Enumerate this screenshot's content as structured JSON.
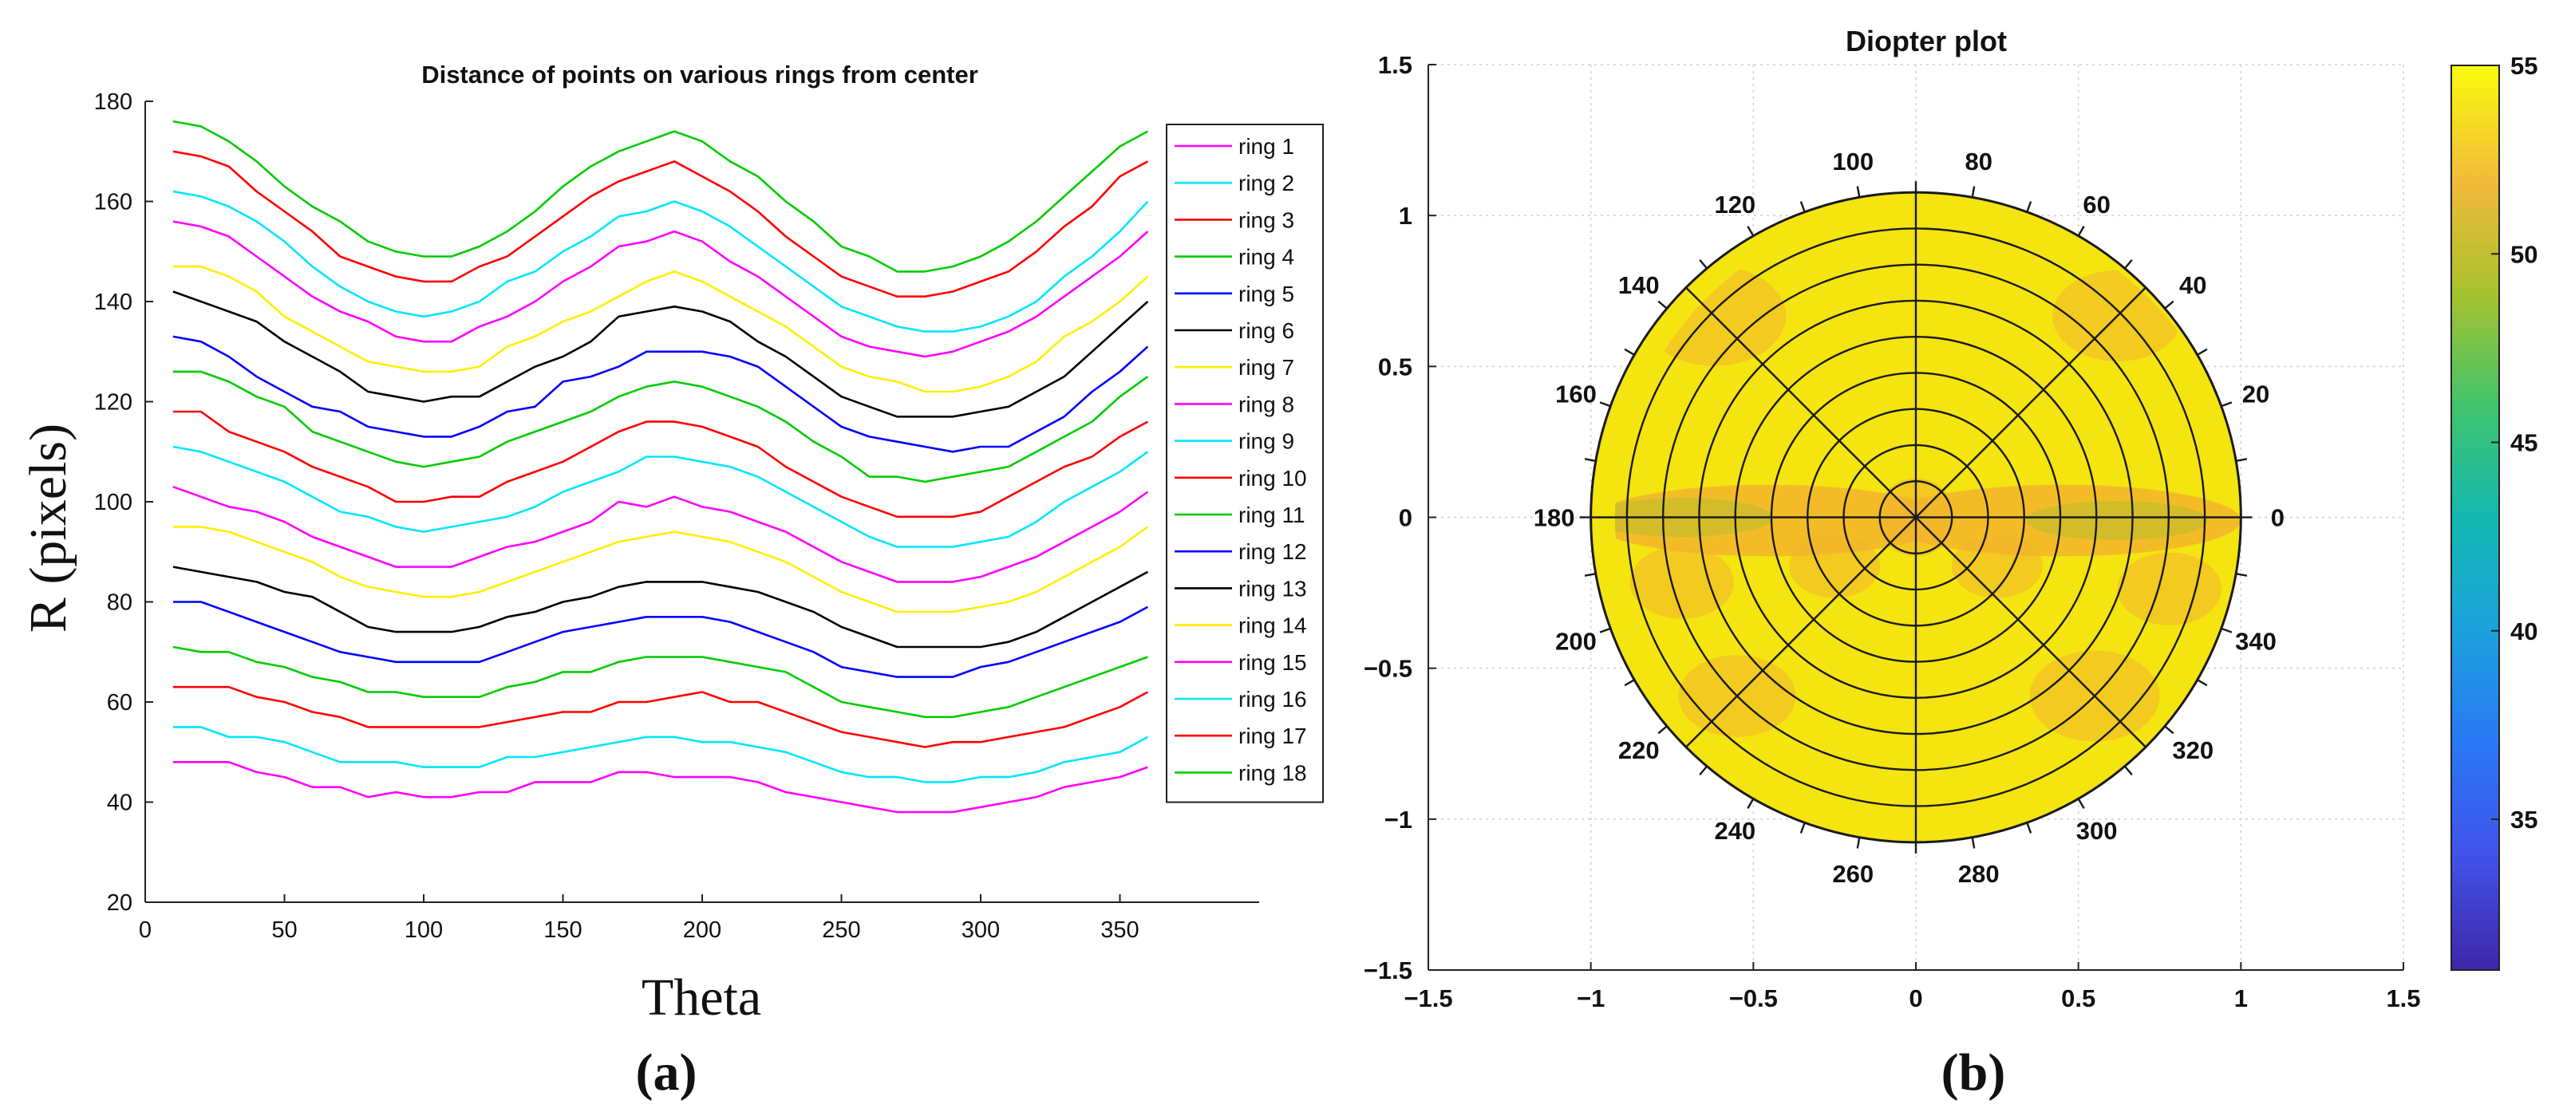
{
  "chart_data": [
    {
      "type": "line",
      "panel_label": "(a)",
      "title": "Distance of points on various rings from center",
      "xlabel": "Theta",
      "ylabel": "R (pixels)",
      "xlim": [
        0,
        400
      ],
      "ylim": [
        20,
        180
      ],
      "xticks": [
        0,
        50,
        100,
        150,
        200,
        250,
        300,
        350
      ],
      "yticks": [
        20,
        40,
        60,
        80,
        100,
        120,
        140,
        160,
        180
      ],
      "legend_position": "right",
      "x": [
        10,
        20,
        30,
        40,
        50,
        60,
        70,
        80,
        90,
        100,
        110,
        120,
        130,
        140,
        150,
        160,
        170,
        180,
        190,
        200,
        210,
        220,
        230,
        240,
        250,
        260,
        270,
        280,
        290,
        300,
        310,
        320,
        330,
        340,
        350,
        360
      ],
      "series": [
        {
          "name": "ring 1",
          "color": "#ff00ff",
          "values": [
            48,
            48,
            48,
            46,
            45,
            43,
            43,
            41,
            42,
            41,
            41,
            42,
            42,
            44,
            44,
            44,
            46,
            46,
            45,
            45,
            45,
            44,
            42,
            41,
            40,
            39,
            38,
            38,
            38,
            39,
            40,
            41,
            43,
            44,
            45,
            47
          ]
        },
        {
          "name": "ring 2",
          "color": "#00e5ff",
          "values": [
            55,
            55,
            53,
            53,
            52,
            50,
            48,
            48,
            48,
            47,
            47,
            47,
            49,
            49,
            50,
            51,
            52,
            53,
            53,
            52,
            52,
            51,
            50,
            48,
            46,
            45,
            45,
            44,
            44,
            45,
            45,
            46,
            48,
            49,
            50,
            53
          ]
        },
        {
          "name": "ring 3",
          "color": "#ff0000",
          "values": [
            63,
            63,
            63,
            61,
            60,
            58,
            57,
            55,
            55,
            55,
            55,
            55,
            56,
            57,
            58,
            58,
            60,
            60,
            61,
            62,
            60,
            60,
            58,
            56,
            54,
            53,
            52,
            51,
            52,
            52,
            53,
            54,
            55,
            57,
            59,
            62
          ]
        },
        {
          "name": "ring 4",
          "color": "#00cc00",
          "values": [
            71,
            70,
            70,
            68,
            67,
            65,
            64,
            62,
            62,
            61,
            61,
            61,
            63,
            64,
            66,
            66,
            68,
            69,
            69,
            69,
            68,
            67,
            66,
            63,
            60,
            59,
            58,
            57,
            57,
            58,
            59,
            61,
            63,
            65,
            67,
            69
          ]
        },
        {
          "name": "ring 5",
          "color": "#0000ff",
          "values": [
            80,
            80,
            78,
            76,
            74,
            72,
            70,
            69,
            68,
            68,
            68,
            68,
            70,
            72,
            74,
            75,
            76,
            77,
            77,
            77,
            76,
            74,
            72,
            70,
            67,
            66,
            65,
            65,
            65,
            67,
            68,
            70,
            72,
            74,
            76,
            79
          ]
        },
        {
          "name": "ring 6",
          "color": "#000000",
          "values": [
            87,
            86,
            85,
            84,
            82,
            81,
            78,
            75,
            74,
            74,
            74,
            75,
            77,
            78,
            80,
            81,
            83,
            84,
            84,
            84,
            83,
            82,
            80,
            78,
            75,
            73,
            71,
            71,
            71,
            71,
            72,
            74,
            77,
            80,
            83,
            86
          ]
        },
        {
          "name": "ring 7",
          "color": "#ffee00",
          "values": [
            95,
            95,
            94,
            92,
            90,
            88,
            85,
            83,
            82,
            81,
            81,
            82,
            84,
            86,
            88,
            90,
            92,
            93,
            94,
            93,
            92,
            90,
            88,
            85,
            82,
            80,
            78,
            78,
            78,
            79,
            80,
            82,
            85,
            88,
            91,
            95
          ]
        },
        {
          "name": "ring 8",
          "color": "#ff00ff",
          "values": [
            103,
            101,
            99,
            98,
            96,
            93,
            91,
            89,
            87,
            87,
            87,
            89,
            91,
            92,
            94,
            96,
            100,
            99,
            101,
            99,
            98,
            96,
            94,
            91,
            88,
            86,
            84,
            84,
            84,
            85,
            87,
            89,
            92,
            95,
            98,
            102
          ]
        },
        {
          "name": "ring 9",
          "color": "#00e5ff",
          "values": [
            111,
            110,
            108,
            106,
            104,
            101,
            98,
            97,
            95,
            94,
            95,
            96,
            97,
            99,
            102,
            104,
            106,
            109,
            109,
            108,
            107,
            105,
            102,
            99,
            96,
            93,
            91,
            91,
            91,
            92,
            93,
            96,
            100,
            103,
            106,
            110
          ]
        },
        {
          "name": "ring 10",
          "color": "#ff0000",
          "values": [
            118,
            118,
            114,
            112,
            110,
            107,
            105,
            103,
            100,
            100,
            101,
            101,
            104,
            106,
            108,
            111,
            114,
            116,
            116,
            115,
            113,
            111,
            107,
            104,
            101,
            99,
            97,
            97,
            97,
            98,
            101,
            104,
            107,
            109,
            113,
            116
          ]
        },
        {
          "name": "ring 11",
          "color": "#00cc00",
          "values": [
            126,
            126,
            124,
            121,
            119,
            114,
            112,
            110,
            108,
            107,
            108,
            109,
            112,
            114,
            116,
            118,
            121,
            123,
            124,
            123,
            121,
            119,
            116,
            112,
            109,
            105,
            105,
            104,
            105,
            106,
            107,
            110,
            113,
            116,
            121,
            125
          ]
        },
        {
          "name": "ring 12",
          "color": "#0000ff",
          "values": [
            133,
            132,
            129,
            125,
            122,
            119,
            118,
            115,
            114,
            113,
            113,
            115,
            118,
            119,
            124,
            125,
            127,
            130,
            130,
            130,
            129,
            127,
            123,
            119,
            115,
            113,
            112,
            111,
            110,
            111,
            111,
            114,
            117,
            122,
            126,
            131
          ]
        },
        {
          "name": "ring 13",
          "color": "#000000",
          "values": [
            142,
            140,
            138,
            136,
            132,
            129,
            126,
            122,
            121,
            120,
            121,
            121,
            124,
            127,
            129,
            132,
            137,
            138,
            139,
            138,
            136,
            132,
            129,
            125,
            121,
            119,
            117,
            117,
            117,
            118,
            119,
            122,
            125,
            130,
            135,
            140
          ]
        },
        {
          "name": "ring 14",
          "color": "#ffee00",
          "values": [
            147,
            147,
            145,
            142,
            137,
            134,
            131,
            128,
            127,
            126,
            126,
            127,
            131,
            133,
            136,
            138,
            141,
            144,
            146,
            144,
            141,
            138,
            135,
            131,
            127,
            125,
            124,
            122,
            122,
            123,
            125,
            128,
            133,
            136,
            140,
            145
          ]
        },
        {
          "name": "ring 15",
          "color": "#ff00ff",
          "values": [
            156,
            155,
            153,
            149,
            145,
            141,
            138,
            136,
            133,
            132,
            132,
            135,
            137,
            140,
            144,
            147,
            151,
            152,
            154,
            152,
            148,
            145,
            141,
            137,
            133,
            131,
            130,
            129,
            130,
            132,
            134,
            137,
            141,
            145,
            149,
            154
          ]
        },
        {
          "name": "ring 16",
          "color": "#00e5ff",
          "values": [
            162,
            161,
            159,
            156,
            152,
            147,
            143,
            140,
            138,
            137,
            138,
            140,
            144,
            146,
            150,
            153,
            157,
            158,
            160,
            158,
            155,
            151,
            147,
            143,
            139,
            137,
            135,
            134,
            134,
            135,
            137,
            140,
            145,
            149,
            154,
            160
          ]
        },
        {
          "name": "ring 17",
          "color": "#ff0000",
          "values": [
            170,
            169,
            167,
            162,
            158,
            154,
            149,
            147,
            145,
            144,
            144,
            147,
            149,
            153,
            157,
            161,
            164,
            166,
            168,
            165,
            162,
            158,
            153,
            149,
            145,
            143,
            141,
            141,
            142,
            144,
            146,
            150,
            155,
            159,
            165,
            168
          ]
        },
        {
          "name": "ring 18",
          "color": "#00cc00",
          "values": [
            176,
            175,
            172,
            168,
            163,
            159,
            156,
            152,
            150,
            149,
            149,
            151,
            154,
            158,
            163,
            167,
            170,
            172,
            174,
            172,
            168,
            165,
            160,
            156,
            151,
            149,
            146,
            146,
            147,
            149,
            152,
            156,
            161,
            166,
            171,
            174
          ]
        }
      ]
    },
    {
      "type": "heatmap",
      "subtype": "polar",
      "panel_label": "(b)",
      "title": "Diopter plot",
      "xlim": [
        -1.5,
        1.5
      ],
      "ylim": [
        -1.5,
        1.5
      ],
      "xticks": [
        -1.5,
        -1,
        -0.5,
        0,
        0.5,
        1,
        1.5
      ],
      "yticks": [
        -1.5,
        -1,
        -0.5,
        0,
        0.5,
        1,
        1.5
      ],
      "xtick_labels": [
        "−1.5",
        "−1",
        "−0.5",
        "0",
        "0.5",
        "1",
        "1.5"
      ],
      "ytick_labels": [
        "−1.5",
        "−1",
        "−0.5",
        "0",
        "0.5",
        "1",
        "1.5"
      ],
      "grid": true,
      "angle_labels": [
        "0",
        "20",
        "40",
        "60",
        "80",
        "100",
        "120",
        "140",
        "160",
        "180",
        "200",
        "220",
        "240",
        "260",
        "280",
        "300",
        "320",
        "340"
      ],
      "radial_rings": 9,
      "spokes_deg": [
        0,
        45,
        90,
        135
      ],
      "colorbar": {
        "min": 31,
        "max": 55,
        "ticks": [
          35,
          40,
          45,
          50,
          55
        ],
        "colormap": "parula"
      },
      "typical_value_diopter": 54,
      "horizontal_band_value_diopter": 51.5
    }
  ],
  "colors": {
    "polar_base": "#f4e410",
    "polar_band": "#f2b52c",
    "polar_band_olive": "#c9bb2a",
    "grid": "#d0d0d0"
  }
}
